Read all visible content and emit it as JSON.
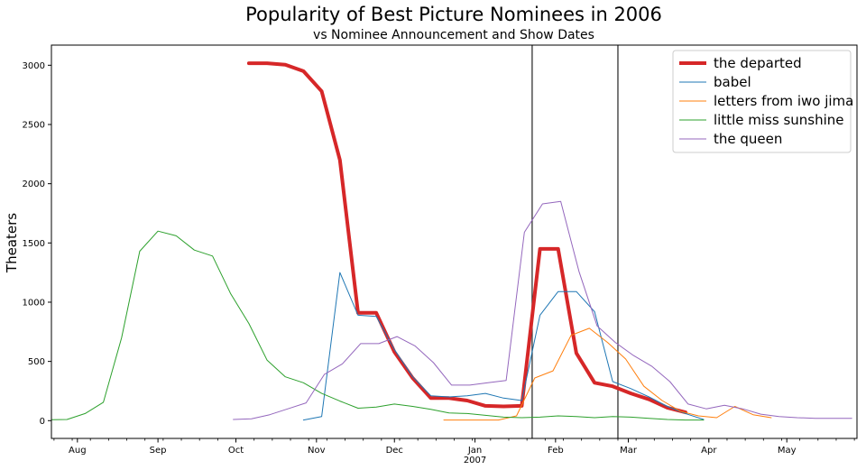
{
  "chart_data": {
    "type": "line",
    "title": "Popularity of Best Picture Nominees in 2006",
    "subtitle": "vs Nominee Announcement and Show Dates",
    "xlabel": "",
    "ylabel": "Theaters",
    "xlim": [
      "2006-07-22",
      "2007-05-28"
    ],
    "ylim": [
      -150,
      3170
    ],
    "x_ticks": [
      {
        "date": "2006-08-01",
        "label": "Aug"
      },
      {
        "date": "2006-09-01",
        "label": "Sep"
      },
      {
        "date": "2006-10-01",
        "label": "Oct"
      },
      {
        "date": "2006-11-01",
        "label": "Nov"
      },
      {
        "date": "2006-12-01",
        "label": "Dec"
      },
      {
        "date": "2007-01-01",
        "label": "Jan",
        "sublabel": "2007"
      },
      {
        "date": "2007-02-01",
        "label": "Feb"
      },
      {
        "date": "2007-03-01",
        "label": "Mar"
      },
      {
        "date": "2007-04-01",
        "label": "Apr"
      },
      {
        "date": "2007-05-01",
        "label": "May"
      }
    ],
    "y_ticks": [
      0,
      500,
      1000,
      1500,
      2000,
      2500,
      3000
    ],
    "vlines": [
      "2007-01-23",
      "2007-02-25"
    ],
    "grid": false,
    "legend_position": "top-right",
    "series": [
      {
        "name": "the departed",
        "color": "#d62728",
        "width": 4,
        "points": [
          [
            "2006-10-06",
            3017
          ],
          [
            "2006-10-13",
            3017
          ],
          [
            "2006-10-20",
            3005
          ],
          [
            "2006-10-27",
            2950
          ],
          [
            "2006-11-03",
            2780
          ],
          [
            "2006-11-10",
            2200
          ],
          [
            "2006-11-17",
            910
          ],
          [
            "2006-11-24",
            910
          ],
          [
            "2006-12-01",
            580
          ],
          [
            "2006-12-08",
            360
          ],
          [
            "2006-12-15",
            190
          ],
          [
            "2006-12-22",
            190
          ],
          [
            "2006-12-29",
            170
          ],
          [
            "2007-01-05",
            125
          ],
          [
            "2007-01-12",
            120
          ],
          [
            "2007-01-19",
            125
          ],
          [
            "2007-01-26",
            1450
          ],
          [
            "2007-02-02",
            1450
          ],
          [
            "2007-02-09",
            570
          ],
          [
            "2007-02-16",
            320
          ],
          [
            "2007-02-23",
            290
          ],
          [
            "2007-03-02",
            230
          ],
          [
            "2007-03-09",
            180
          ],
          [
            "2007-03-16",
            110
          ],
          [
            "2007-03-23",
            70
          ]
        ]
      },
      {
        "name": "babel",
        "color": "#1f77b4",
        "width": 1,
        "points": [
          [
            "2006-10-27",
            5
          ],
          [
            "2006-11-03",
            35
          ],
          [
            "2006-11-10",
            1250
          ],
          [
            "2006-11-17",
            890
          ],
          [
            "2006-11-24",
            880
          ],
          [
            "2006-12-01",
            600
          ],
          [
            "2006-12-08",
            370
          ],
          [
            "2006-12-15",
            210
          ],
          [
            "2006-12-22",
            200
          ],
          [
            "2006-12-29",
            210
          ],
          [
            "2007-01-05",
            230
          ],
          [
            "2007-01-12",
            190
          ],
          [
            "2007-01-19",
            170
          ],
          [
            "2007-01-26",
            890
          ],
          [
            "2007-02-02",
            1090
          ],
          [
            "2007-02-09",
            1090
          ],
          [
            "2007-02-16",
            920
          ],
          [
            "2007-02-23",
            330
          ],
          [
            "2007-03-02",
            270
          ],
          [
            "2007-03-09",
            200
          ],
          [
            "2007-03-16",
            120
          ],
          [
            "2007-03-23",
            60
          ],
          [
            "2007-03-30",
            10
          ]
        ]
      },
      {
        "name": "letters from iwo jima",
        "color": "#ff7f0e",
        "width": 1,
        "points": [
          [
            "2006-12-20",
            5
          ],
          [
            "2006-12-27",
            5
          ],
          [
            "2007-01-03",
            5
          ],
          [
            "2007-01-10",
            5
          ],
          [
            "2007-01-17",
            40
          ],
          [
            "2007-01-24",
            360
          ],
          [
            "2007-01-31",
            420
          ],
          [
            "2007-02-07",
            720
          ],
          [
            "2007-02-14",
            780
          ],
          [
            "2007-02-21",
            660
          ],
          [
            "2007-02-28",
            520
          ],
          [
            "2007-03-07",
            290
          ],
          [
            "2007-03-14",
            170
          ],
          [
            "2007-03-21",
            80
          ],
          [
            "2007-03-28",
            40
          ],
          [
            "2007-04-04",
            25
          ],
          [
            "2007-04-11",
            120
          ],
          [
            "2007-04-18",
            50
          ],
          [
            "2007-04-25",
            25
          ]
        ]
      },
      {
        "name": "little miss sunshine",
        "color": "#2ca02c",
        "width": 1,
        "points": [
          [
            "2006-07-21",
            8
          ],
          [
            "2006-07-28",
            10
          ],
          [
            "2006-08-04",
            60
          ],
          [
            "2006-08-11",
            155
          ],
          [
            "2006-08-18",
            700
          ],
          [
            "2006-08-25",
            1430
          ],
          [
            "2006-09-01",
            1600
          ],
          [
            "2006-09-08",
            1560
          ],
          [
            "2006-09-15",
            1440
          ],
          [
            "2006-09-22",
            1390
          ],
          [
            "2006-09-29",
            1070
          ],
          [
            "2006-10-06",
            820
          ],
          [
            "2006-10-13",
            510
          ],
          [
            "2006-10-20",
            370
          ],
          [
            "2006-10-27",
            320
          ],
          [
            "2006-11-03",
            230
          ],
          [
            "2006-11-10",
            165
          ],
          [
            "2006-11-17",
            105
          ],
          [
            "2006-11-24",
            115
          ],
          [
            "2006-12-01",
            140
          ],
          [
            "2006-12-08",
            120
          ],
          [
            "2006-12-15",
            95
          ],
          [
            "2006-12-22",
            65
          ],
          [
            "2006-12-29",
            60
          ],
          [
            "2007-01-05",
            45
          ],
          [
            "2007-01-12",
            30
          ],
          [
            "2007-01-19",
            25
          ],
          [
            "2007-01-26",
            30
          ],
          [
            "2007-02-02",
            40
          ],
          [
            "2007-02-09",
            35
          ],
          [
            "2007-02-16",
            25
          ],
          [
            "2007-02-23",
            35
          ],
          [
            "2007-03-02",
            30
          ],
          [
            "2007-03-09",
            20
          ],
          [
            "2007-03-16",
            10
          ],
          [
            "2007-03-23",
            5
          ],
          [
            "2007-03-30",
            5
          ]
        ]
      },
      {
        "name": "the queen",
        "color": "#9467bd",
        "width": 1,
        "points": [
          [
            "2006-09-30",
            10
          ],
          [
            "2006-10-07",
            15
          ],
          [
            "2006-10-14",
            50
          ],
          [
            "2006-10-21",
            100
          ],
          [
            "2006-10-28",
            150
          ],
          [
            "2006-11-04",
            390
          ],
          [
            "2006-11-11",
            480
          ],
          [
            "2006-11-18",
            650
          ],
          [
            "2006-11-25",
            650
          ],
          [
            "2006-12-02",
            710
          ],
          [
            "2006-12-09",
            630
          ],
          [
            "2006-12-16",
            490
          ],
          [
            "2006-12-23",
            300
          ],
          [
            "2006-12-30",
            300
          ],
          [
            "2007-01-06",
            320
          ],
          [
            "2007-01-13",
            340
          ],
          [
            "2007-01-20",
            1590
          ],
          [
            "2007-01-27",
            1830
          ],
          [
            "2007-02-03",
            1850
          ],
          [
            "2007-02-10",
            1260
          ],
          [
            "2007-02-17",
            800
          ],
          [
            "2007-02-24",
            660
          ],
          [
            "2007-03-03",
            550
          ],
          [
            "2007-03-10",
            460
          ],
          [
            "2007-03-17",
            330
          ],
          [
            "2007-03-24",
            140
          ],
          [
            "2007-03-31",
            100
          ],
          [
            "2007-04-07",
            130
          ],
          [
            "2007-04-14",
            100
          ],
          [
            "2007-04-21",
            55
          ],
          [
            "2007-04-28",
            35
          ],
          [
            "2007-05-05",
            25
          ],
          [
            "2007-05-12",
            20
          ],
          [
            "2007-05-19",
            20
          ],
          [
            "2007-05-26",
            20
          ]
        ]
      }
    ]
  }
}
